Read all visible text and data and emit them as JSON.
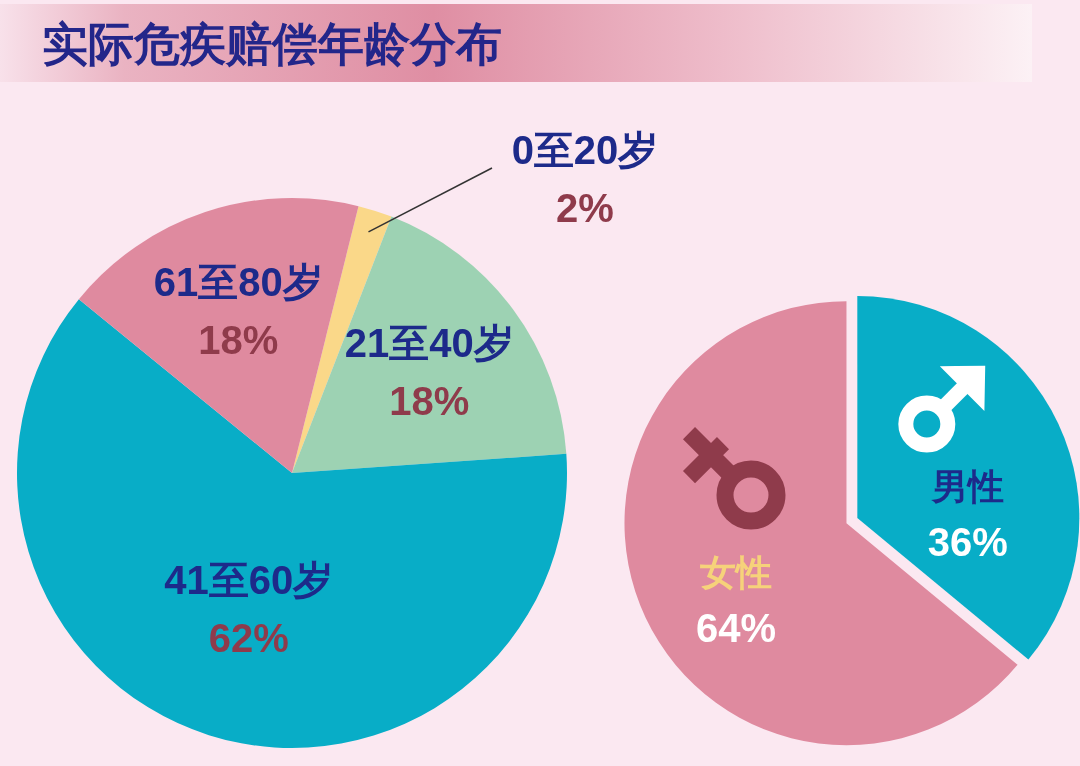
{
  "chart_data": [
    {
      "type": "pie",
      "title": "实际危疾赔偿年龄分布",
      "categories": [
        "0至20岁",
        "21至40岁",
        "41至60岁",
        "61至80岁"
      ],
      "values": [
        2,
        18,
        62,
        18
      ],
      "colors": [
        "#fad889",
        "#9dd2b3",
        "#08adc7",
        "#df8a9f"
      ],
      "value_labels": [
        "2%",
        "18%",
        "62%",
        "18%"
      ]
    },
    {
      "type": "pie",
      "categories": [
        "男性",
        "女性"
      ],
      "values": [
        36,
        64
      ],
      "colors": [
        "#08adc7",
        "#df8a9f"
      ],
      "value_labels": [
        "36%",
        "64%"
      ]
    }
  ]
}
